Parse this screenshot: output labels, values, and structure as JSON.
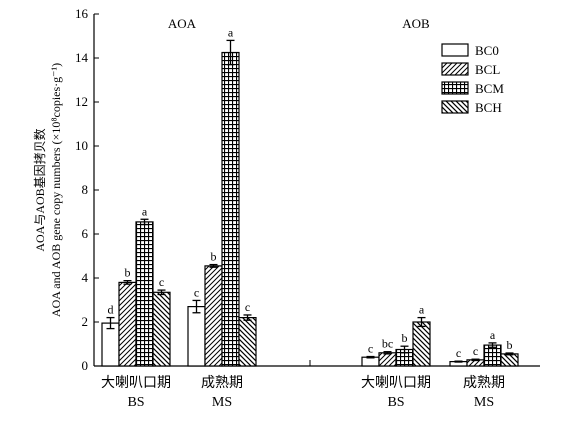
{
  "chart_data": {
    "type": "bar",
    "ylabel_cn": "AOA与AOB基因拷贝数",
    "ylabel_en": "AOA and AOB gene copy numbers (×10⁸copies·g⁻¹)",
    "ylim": [
      0,
      16
    ],
    "yticks": [
      "0",
      "2",
      "4",
      "6",
      "8",
      "10",
      "12",
      "14",
      "16"
    ],
    "grid": false,
    "legend_position": "top-right",
    "panels": [
      {
        "title": "AOA"
      },
      {
        "title": "AOB"
      }
    ],
    "series": [
      {
        "name": "BC0",
        "pattern": "blank"
      },
      {
        "name": "BCL",
        "pattern": "diagonal"
      },
      {
        "name": "BCM",
        "pattern": "grid"
      },
      {
        "name": "BCH",
        "pattern": "hatch"
      }
    ],
    "groups": [
      {
        "panel": 0,
        "stage_cn": "大喇叭口期",
        "stage_en": "BS",
        "values": [
          1.95,
          3.8,
          6.55,
          3.35
        ],
        "errors": [
          0.25,
          0.08,
          0.12,
          0.1
        ],
        "sig": [
          "d",
          "b",
          "a",
          "c"
        ]
      },
      {
        "panel": 0,
        "stage_cn": "成熟期",
        "stage_en": "MS",
        "values": [
          2.7,
          4.55,
          14.25,
          2.2
        ],
        "errors": [
          0.28,
          0.06,
          0.55,
          0.12
        ],
        "sig": [
          "c",
          "b",
          "a",
          "c"
        ]
      },
      {
        "panel": 1,
        "stage_cn": "大喇叭口期",
        "stage_en": "BS",
        "values": [
          0.4,
          0.6,
          0.75,
          2.0
        ],
        "errors": [
          0.03,
          0.05,
          0.15,
          0.2
        ],
        "sig": [
          "c",
          "bc",
          "b",
          "a"
        ]
      },
      {
        "panel": 1,
        "stage_cn": "成熟期",
        "stage_en": "MS",
        "values": [
          0.2,
          0.28,
          0.95,
          0.55
        ],
        "errors": [
          0.02,
          0.03,
          0.1,
          0.04
        ],
        "sig": [
          "c",
          "c",
          "a",
          "b"
        ]
      }
    ]
  }
}
